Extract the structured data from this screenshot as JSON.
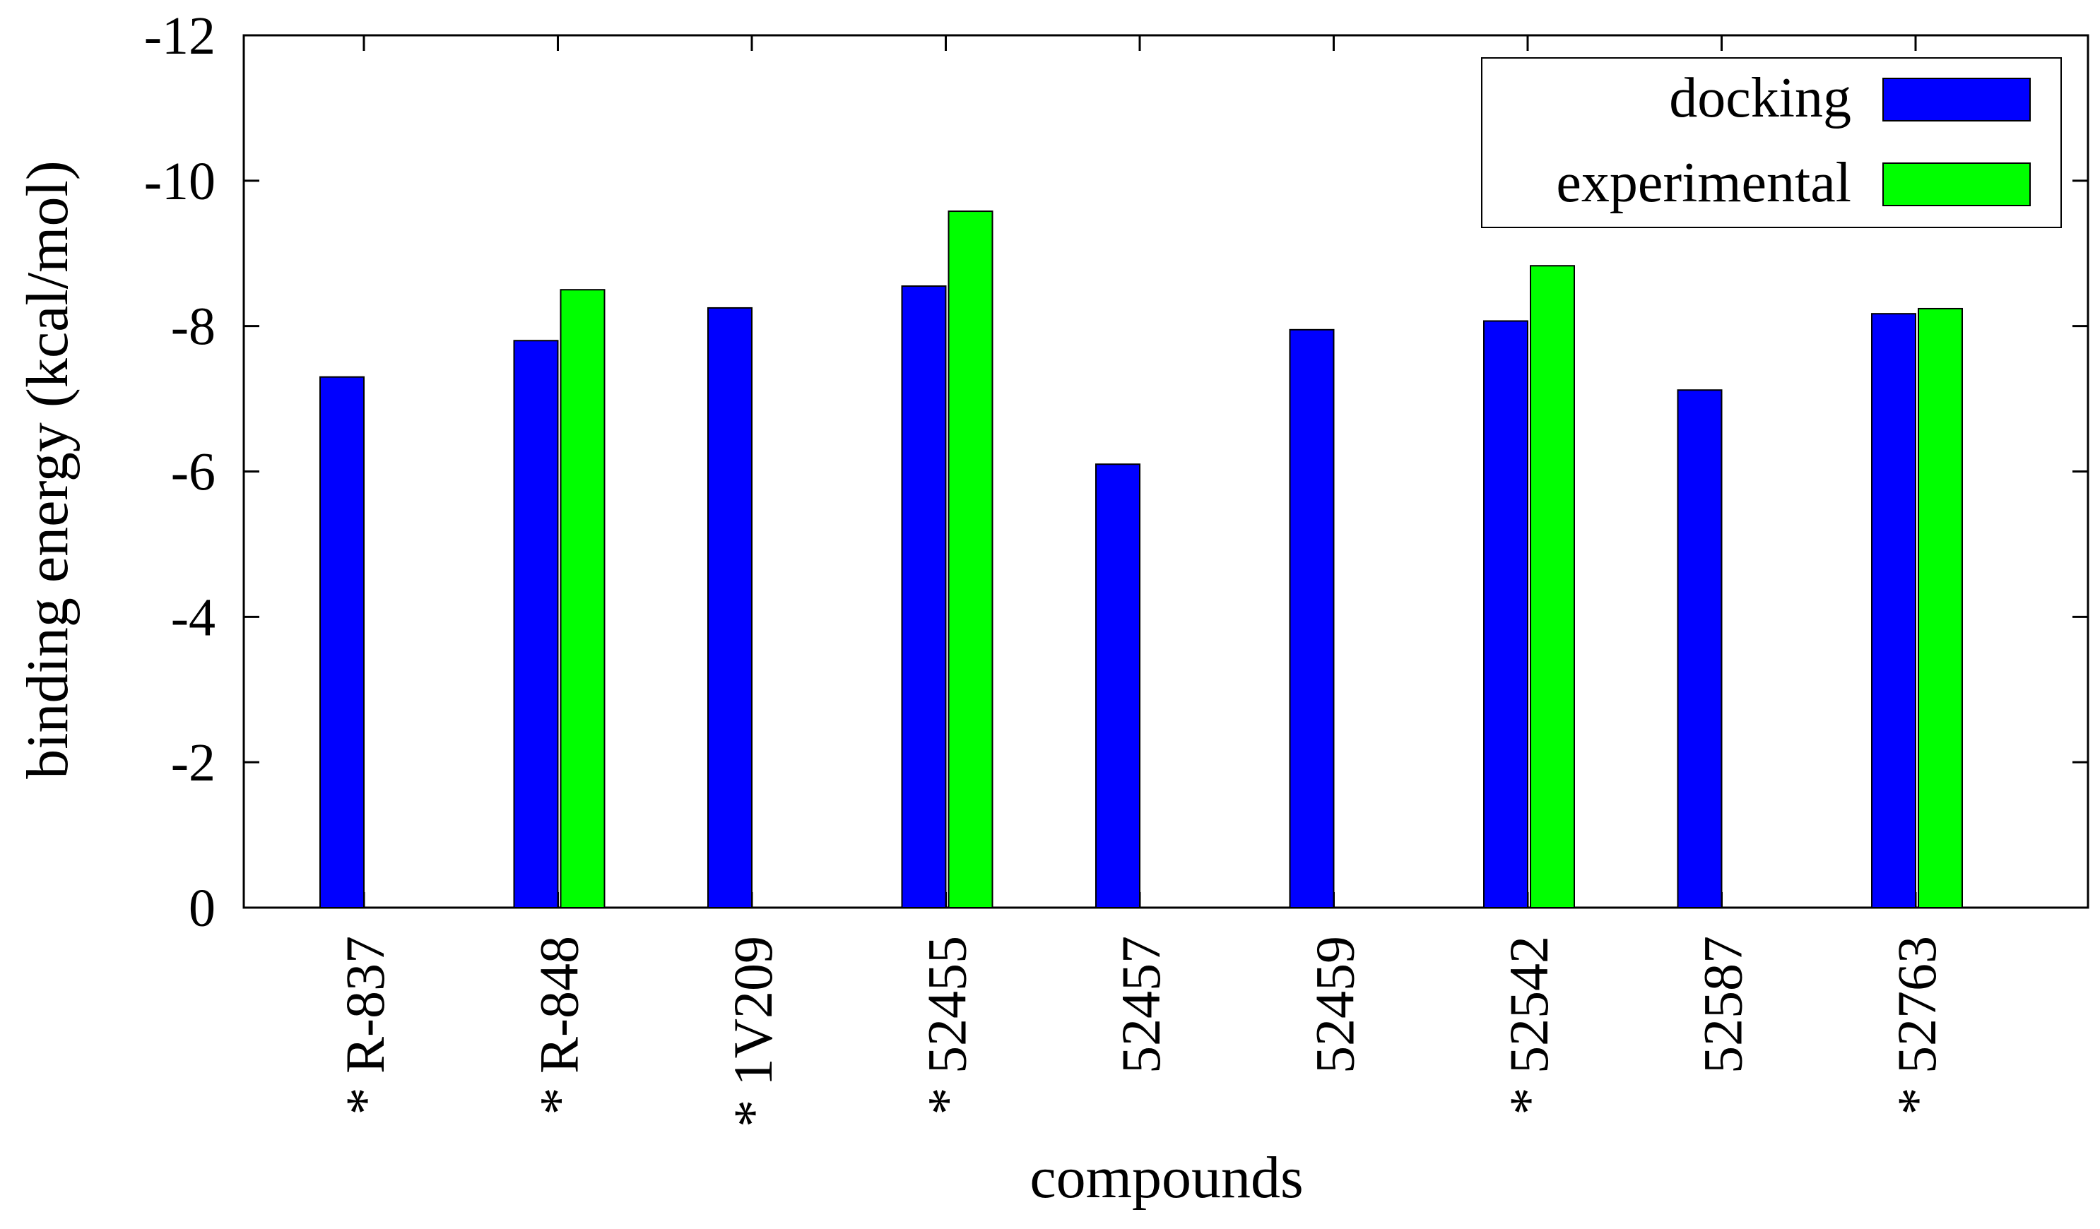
{
  "chart_data": {
    "type": "bar",
    "xlabel": "compounds",
    "ylabel": "binding energy (kcal/mol)",
    "ylim": [
      0,
      -12
    ],
    "y_axis_inverted": true,
    "yticks": [
      0,
      -2,
      -4,
      -6,
      -8,
      -10,
      -12
    ],
    "ytick_labels": [
      "0",
      "-2",
      "-4",
      "-6",
      "-8",
      "-10",
      "-12"
    ],
    "categories": [
      "* R-837",
      "* R-848",
      "* 1V209",
      "* 52455",
      "52457",
      "52459",
      "* 52542",
      "52587",
      "* 52763"
    ],
    "series": [
      {
        "name": "docking",
        "color": "#0000ff",
        "values": [
          -7.3,
          -7.8,
          -8.25,
          -8.55,
          -6.1,
          -7.95,
          -8.07,
          -7.12,
          -8.17
        ]
      },
      {
        "name": "experimental",
        "color": "#00ff00",
        "values": [
          null,
          -8.5,
          null,
          -9.58,
          null,
          null,
          -8.83,
          null,
          -8.24
        ]
      }
    ],
    "legend_position": "top-right",
    "grid": false
  }
}
